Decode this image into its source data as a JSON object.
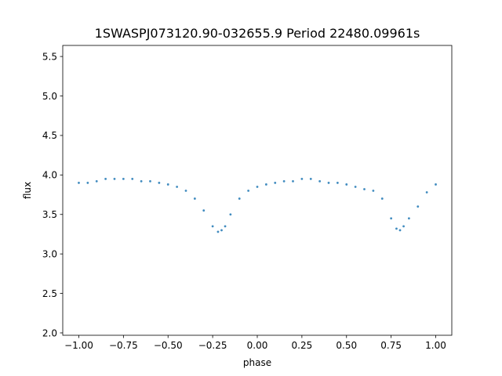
{
  "chart_data": {
    "type": "scatter",
    "title": "1SWASPJ073120.90-032655.9 Period 22480.09961s",
    "xlabel": "phase",
    "ylabel": "flux",
    "xlim": [
      -1.09,
      1.09
    ],
    "ylim": [
      1.97,
      5.64
    ],
    "xticks": [
      -1.0,
      -0.75,
      -0.5,
      -0.25,
      0.0,
      0.25,
      0.5,
      0.75,
      1.0
    ],
    "xtick_labels": [
      "−1.00",
      "−0.75",
      "−0.50",
      "−0.25",
      "0.00",
      "0.25",
      "0.50",
      "0.75",
      "1.00"
    ],
    "yticks": [
      2.0,
      2.5,
      3.0,
      3.5,
      4.0,
      4.5,
      5.0,
      5.5
    ],
    "ytick_labels": [
      "2.0",
      "2.5",
      "3.0",
      "3.5",
      "4.0",
      "4.5",
      "5.0",
      "5.5"
    ],
    "grid": false,
    "legend": "none",
    "point_color": "#1f77b4",
    "series": [
      {
        "x": [
          -1.0,
          -0.95,
          -0.9,
          -0.85,
          -0.8,
          -0.75,
          -0.7,
          -0.65,
          -0.6,
          -0.55,
          -0.5,
          -0.45,
          -0.4,
          -0.35,
          -0.3,
          -0.25,
          -0.22,
          -0.2,
          -0.18,
          -0.15,
          -0.1,
          -0.05,
          0.0,
          0.05,
          0.1,
          0.15,
          0.2,
          0.25,
          0.3,
          0.35,
          0.4,
          0.45,
          0.5,
          0.55,
          0.6,
          0.65,
          0.7,
          0.75,
          0.78,
          0.8,
          0.82,
          0.85,
          0.9,
          0.95,
          1.0
        ],
        "y": [
          3.9,
          3.9,
          3.92,
          3.95,
          3.95,
          3.95,
          3.95,
          3.92,
          3.92,
          3.9,
          3.88,
          3.85,
          3.8,
          3.7,
          3.55,
          3.35,
          3.28,
          3.3,
          3.35,
          3.5,
          3.7,
          3.8,
          3.85,
          3.88,
          3.9,
          3.92,
          3.92,
          3.95,
          3.95,
          3.92,
          3.9,
          3.9,
          3.88,
          3.85,
          3.82,
          3.8,
          3.7,
          3.45,
          3.32,
          3.3,
          3.35,
          3.45,
          3.6,
          3.78,
          3.88
        ]
      }
    ]
  }
}
